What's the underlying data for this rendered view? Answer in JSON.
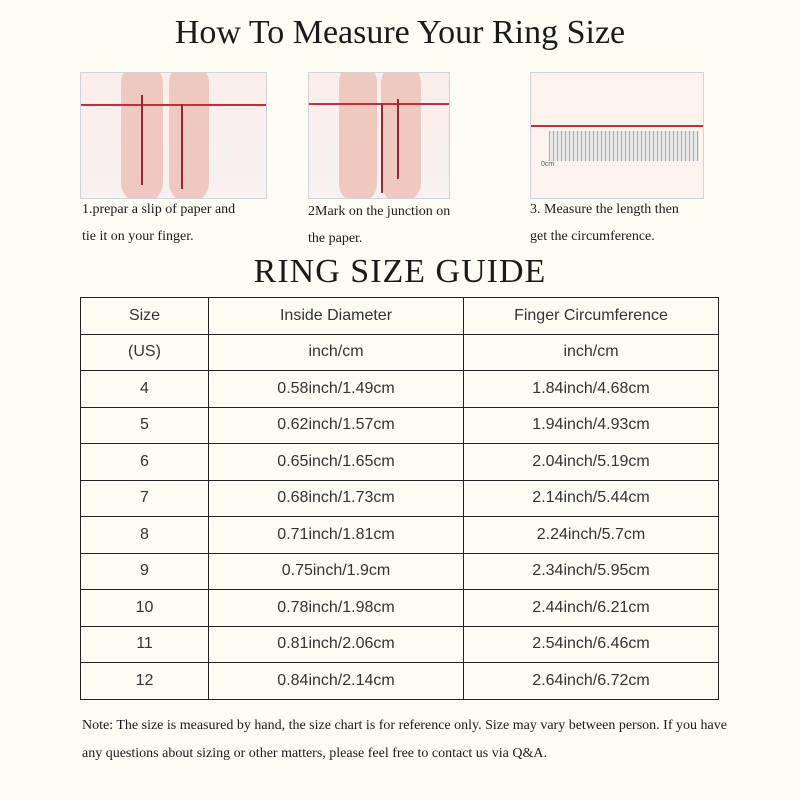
{
  "title": "How To Measure Your Ring Size",
  "steps": [
    {
      "line1": "1.prepar a slip of paper and",
      "line2": "tie it on your finger."
    },
    {
      "line1": "2Mark on the  junction on",
      "line2": "the paper."
    },
    {
      "line1": "3. Measure the length then",
      "line2": "get the circumference."
    }
  ],
  "ruler_label": "0cm",
  "guide_title": "RING SIZE  GUIDE",
  "table": {
    "headers": [
      "Size",
      "Inside Diameter",
      "Finger Circumference"
    ],
    "units": [
      "(US)",
      "inch/cm",
      "inch/cm"
    ],
    "rows": [
      [
        "4",
        "0.58inch/1.49cm",
        "1.84inch/4.68cm"
      ],
      [
        "5",
        "0.62inch/1.57cm",
        "1.94inch/4.93cm"
      ],
      [
        "6",
        "0.65inch/1.65cm",
        "2.04inch/5.19cm"
      ],
      [
        "7",
        "0.68inch/1.73cm",
        "2.14inch/5.44cm"
      ],
      [
        "8",
        "0.71inch/1.81cm",
        "2.24inch/5.7cm"
      ],
      [
        "9",
        "0.75inch/1.9cm",
        "2.34inch/5.95cm"
      ],
      [
        "10",
        "0.78inch/1.98cm",
        "2.44inch/6.21cm"
      ],
      [
        "11",
        "0.81inch/2.06cm",
        "2.54inch/6.46cm"
      ],
      [
        "12",
        "0.84inch/2.14cm",
        "2.64inch/6.72cm"
      ]
    ]
  },
  "note": "Note: The size is measured by hand, the size chart is for reference only. Size may vary between person. If you have any questions about sizing or other matters, please feel free to contact us via Q&A."
}
